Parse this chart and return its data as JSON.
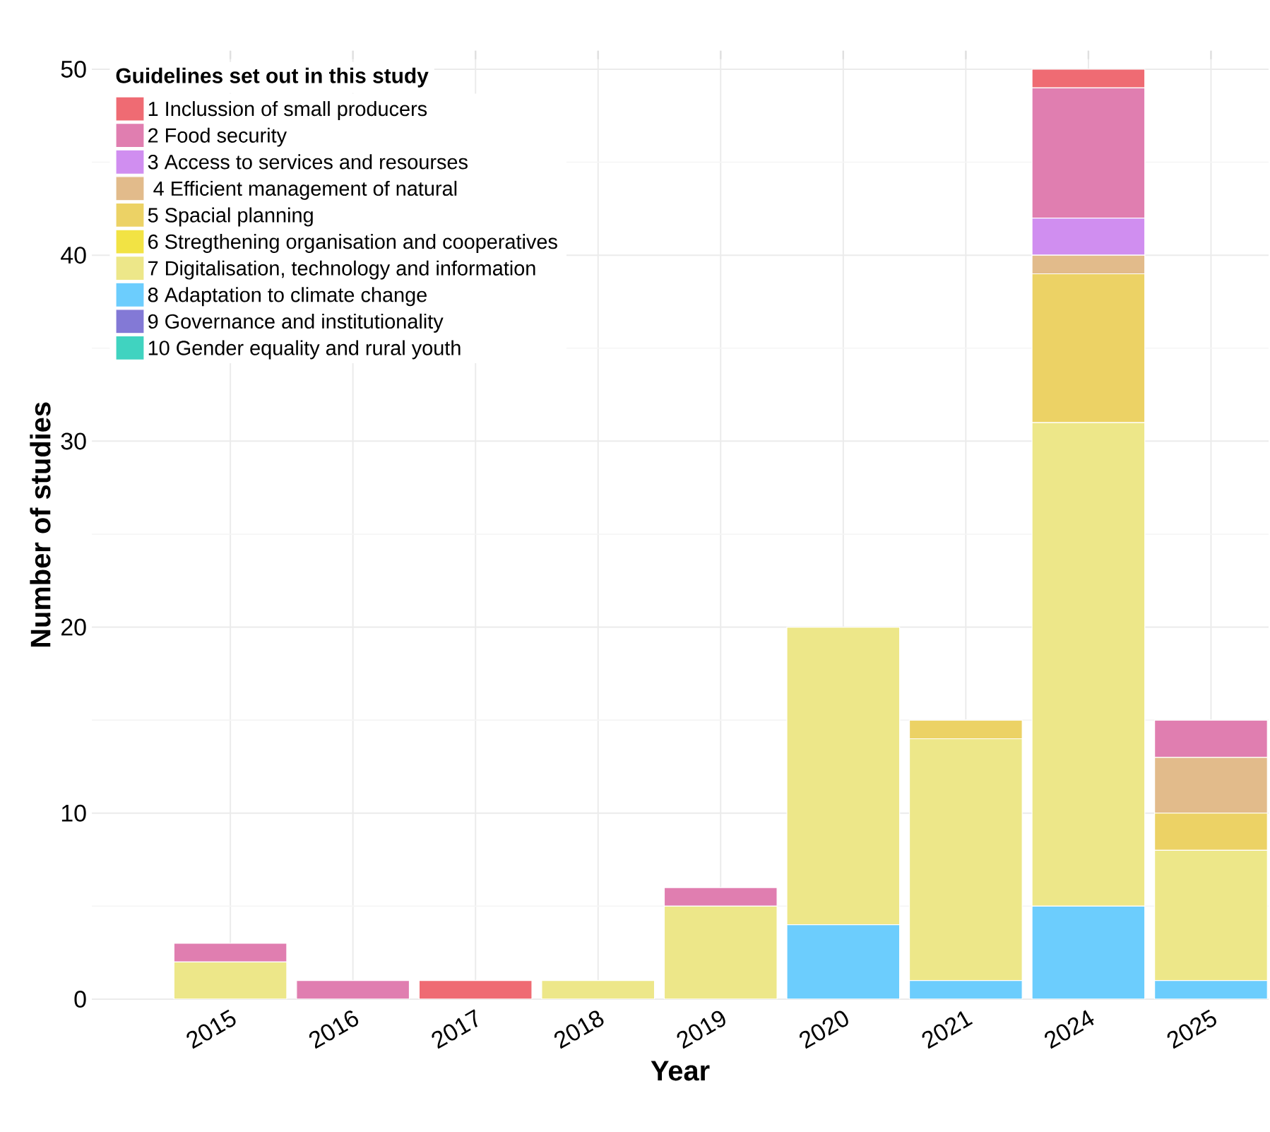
{
  "chart_data": {
    "type": "bar",
    "stacked": true,
    "xlabel": "Year",
    "ylabel": "Number of studies",
    "legend_title": "Guidelines set out in this study",
    "categories": [
      "2015",
      "2016",
      "2017",
      "2018",
      "2019",
      "2020",
      "2021",
      "2024",
      "2025"
    ],
    "ylim": [
      0,
      51
    ],
    "yticks": [
      0,
      10,
      20,
      30,
      40,
      50
    ],
    "grid": true,
    "legend": "top left",
    "series": [
      {
        "name": "10 Gender equality and rural youth",
        "color": "#40d3c0",
        "values": [
          0,
          0,
          0,
          0,
          0,
          0,
          0,
          0,
          0
        ]
      },
      {
        "name": "9 Governance and institutionality",
        "color": "#8379d6",
        "values": [
          0,
          0,
          0,
          0,
          0,
          0,
          0,
          0,
          0
        ]
      },
      {
        "name": "8 Adaptation to climate change",
        "color": "#6ccdfd",
        "values": [
          0,
          0,
          0,
          0,
          0,
          4,
          1,
          5,
          1
        ]
      },
      {
        "name": "7 Digitalisation, technology and information",
        "color": "#ede789",
        "values": [
          2,
          0,
          0,
          1,
          5,
          16,
          13,
          26,
          7
        ]
      },
      {
        "name": "6 Stregthening organisation and cooperatives",
        "color": "#f2e344",
        "values": [
          0,
          0,
          0,
          0,
          0,
          0,
          0,
          0,
          0
        ]
      },
      {
        "name": "5 Spacial planning",
        "color": "#ecd265",
        "values": [
          0,
          0,
          0,
          0,
          0,
          0,
          1,
          8,
          2
        ]
      },
      {
        "name": " 4 Efficient management of natural",
        "color": "#e2bb8b",
        "values": [
          0,
          0,
          0,
          0,
          0,
          0,
          0,
          1,
          3
        ]
      },
      {
        "name": "3 Access to services and resourses",
        "color": "#d08ef0",
        "values": [
          0,
          0,
          0,
          0,
          0,
          0,
          0,
          2,
          0
        ]
      },
      {
        "name": "2 Food security",
        "color": "#e07eb0",
        "values": [
          1,
          1,
          0,
          0,
          1,
          0,
          0,
          7,
          2
        ]
      },
      {
        "name": "1 Inclussion of small  producers",
        "color": "#ef6b73",
        "values": [
          0,
          0,
          1,
          0,
          0,
          0,
          0,
          1,
          0
        ]
      }
    ]
  }
}
